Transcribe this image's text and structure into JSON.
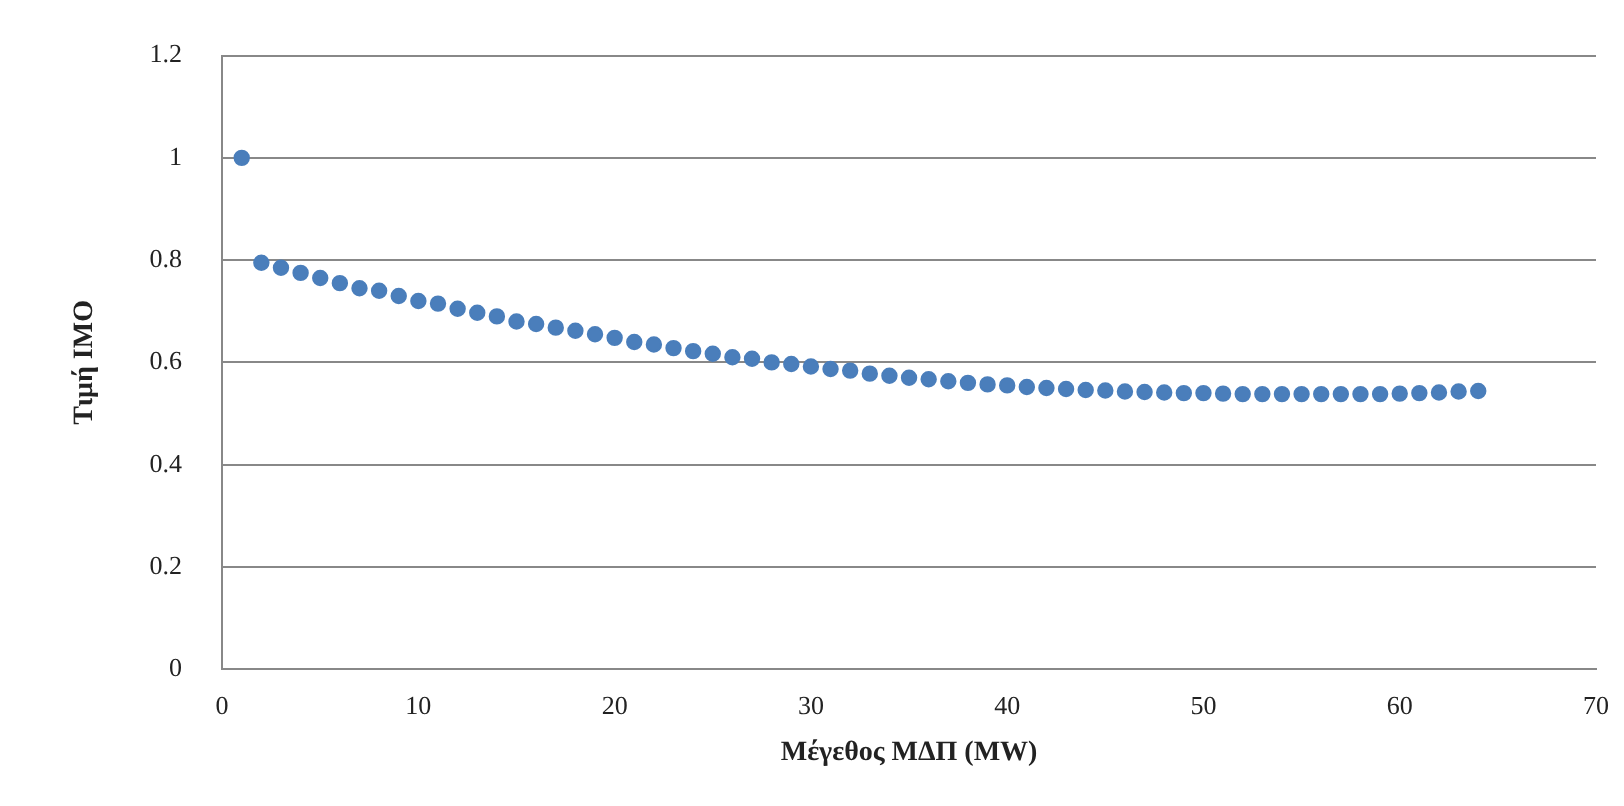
{
  "chart_data": {
    "type": "scatter",
    "xlabel": "Μέγεθος ΜΔΠ (MW)",
    "ylabel": "Τιμή IMO",
    "x": [
      1,
      2,
      3,
      4,
      5,
      6,
      7,
      8,
      9,
      10,
      11,
      12,
      13,
      14,
      15,
      16,
      17,
      18,
      19,
      20,
      21,
      22,
      23,
      24,
      25,
      26,
      27,
      28,
      29,
      30,
      31,
      32,
      33,
      34,
      35,
      36,
      37,
      38,
      39,
      40,
      41,
      42,
      43,
      44,
      45,
      46,
      47,
      48,
      49,
      50,
      51,
      52,
      53,
      54,
      55,
      56,
      57,
      58,
      59,
      60,
      61,
      62,
      63,
      64
    ],
    "series": [
      {
        "color": "#4a7ebb",
        "values": [
          1.0,
          0.795,
          0.785,
          0.775,
          0.765,
          0.755,
          0.745,
          0.74,
          0.73,
          0.72,
          0.715,
          0.705,
          0.697,
          0.69,
          0.68,
          0.675,
          0.668,
          0.662,
          0.655,
          0.648,
          0.64,
          0.635,
          0.628,
          0.622,
          0.617,
          0.61,
          0.607,
          0.6,
          0.597,
          0.592,
          0.587,
          0.584,
          0.578,
          0.574,
          0.57,
          0.567,
          0.563,
          0.56,
          0.557,
          0.555,
          0.552,
          0.55,
          0.548,
          0.546,
          0.545,
          0.543,
          0.542,
          0.541,
          0.54,
          0.54,
          0.539,
          0.538,
          0.538,
          0.538,
          0.538,
          0.538,
          0.538,
          0.538,
          0.538,
          0.539,
          0.54,
          0.541,
          0.543,
          0.544
        ]
      }
    ],
    "xlim": [
      0,
      70
    ],
    "xticks": [
      0,
      10,
      20,
      30,
      40,
      50,
      60,
      70
    ],
    "ylim": [
      0,
      1.2
    ],
    "yticks": [
      0,
      0.2,
      0.4,
      0.6,
      0.8,
      1,
      1.2
    ],
    "grid": "y",
    "legend": false,
    "marker": "circle"
  }
}
